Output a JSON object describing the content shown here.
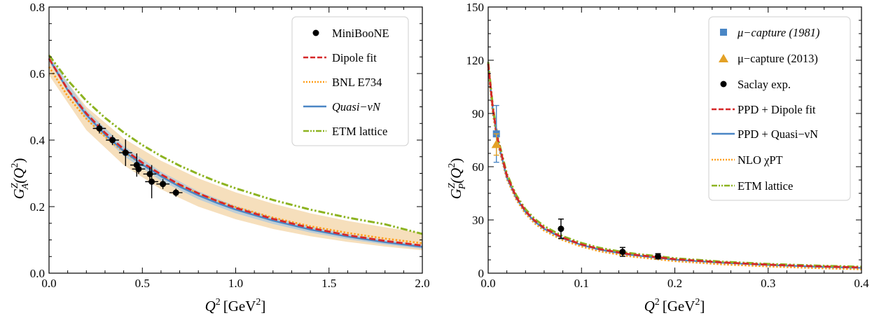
{
  "colors": {
    "minibooNE": "#000000",
    "dipole": "#d62728",
    "bnl": "#ff9f1c",
    "quasi": "#4a86c5",
    "etm": "#8db320",
    "band_orange": "#f5d9b0",
    "band_blue": "#aac8e0",
    "mucap1981": "#4a86c5",
    "mucap2013": "#e3a126",
    "saclay": "#000000"
  },
  "chart_data": [
    {
      "type": "line",
      "xlabel_var": "Q",
      "xlabel_sup": "2",
      "xlabel_unit": "[GeV",
      "xlabel_unit_sup": "2",
      "xlabel_unit_close": "]",
      "ylabel_main": "G",
      "ylabel_sup": "Z",
      "ylabel_sub": "A",
      "ylabel_arg": "(Q",
      "ylabel_arg_sup": "2",
      "ylabel_close": ")",
      "xlim": [
        0.0,
        2.0
      ],
      "ylim": [
        0.0,
        0.8
      ],
      "xticks": [
        "0.0",
        "0.5",
        "1.0",
        "1.5",
        "2.0"
      ],
      "xtick_values": [
        0.0,
        0.5,
        1.0,
        1.5,
        2.0
      ],
      "yticks": [
        "0.0",
        "0.2",
        "0.4",
        "0.6",
        "0.8"
      ],
      "ytick_values": [
        0.0,
        0.2,
        0.4,
        0.6,
        0.8
      ],
      "legend_position": "top-right",
      "legend": [
        "MiniBooNE",
        "Dipole fit",
        "BNL E734",
        "Quasi−νN",
        "ETM lattice"
      ],
      "series": [
        {
          "name": "MiniBooNE",
          "style": "points",
          "x": [
            0.27,
            0.34,
            0.41,
            0.47,
            0.48,
            0.54,
            0.55,
            0.61,
            0.68
          ],
          "y": [
            0.435,
            0.4,
            0.362,
            0.325,
            0.313,
            0.298,
            0.275,
            0.268,
            0.242
          ],
          "xerr": [
            0.035,
            0.035,
            0.035,
            0.035,
            0.035,
            0.035,
            0.035,
            0.035,
            0.035
          ],
          "yerr": [
            0.015,
            0.015,
            0.04,
            0.035,
            0.015,
            0.02,
            0.05,
            0.015,
            0.012
          ]
        },
        {
          "name": "Dipole fit",
          "style": "dashed",
          "x": [
            0.0,
            0.1,
            0.2,
            0.3,
            0.4,
            0.5,
            0.6,
            0.7,
            0.8,
            0.9,
            1.0,
            1.2,
            1.4,
            1.6,
            1.8,
            2.0
          ],
          "y": [
            0.645,
            0.552,
            0.48,
            0.422,
            0.373,
            0.332,
            0.297,
            0.266,
            0.24,
            0.217,
            0.196,
            0.163,
            0.136,
            0.114,
            0.097,
            0.083
          ]
        },
        {
          "name": "BNL E734",
          "style": "dotted",
          "x": [
            0.0,
            0.1,
            0.2,
            0.3,
            0.4,
            0.5,
            0.6,
            0.7,
            0.8,
            0.9,
            1.0,
            1.2,
            1.4,
            1.6,
            1.8,
            2.0
          ],
          "y": [
            0.62,
            0.532,
            0.464,
            0.41,
            0.364,
            0.326,
            0.293,
            0.265,
            0.24,
            0.218,
            0.199,
            0.167,
            0.141,
            0.121,
            0.104,
            0.09
          ]
        },
        {
          "name": "Quasi−νN",
          "style": "solid",
          "x": [
            0.0,
            0.1,
            0.2,
            0.3,
            0.4,
            0.5,
            0.6,
            0.7,
            0.8,
            0.9,
            1.0,
            1.2,
            1.4,
            1.6,
            1.8,
            2.0
          ],
          "y": [
            0.645,
            0.55,
            0.476,
            0.417,
            0.367,
            0.326,
            0.291,
            0.26,
            0.234,
            0.211,
            0.191,
            0.158,
            0.131,
            0.11,
            0.093,
            0.079
          ]
        },
        {
          "name": "ETM lattice",
          "style": "dashdotdot",
          "x": [
            0.0,
            0.1,
            0.2,
            0.3,
            0.4,
            0.5,
            0.6,
            0.7,
            0.8,
            0.9,
            1.0,
            1.2,
            1.4,
            1.6,
            1.8,
            2.0
          ],
          "y": [
            0.655,
            0.58,
            0.518,
            0.467,
            0.423,
            0.385,
            0.352,
            0.323,
            0.298,
            0.275,
            0.255,
            0.22,
            0.191,
            0.167,
            0.147,
            0.118
          ]
        }
      ],
      "bands": [
        {
          "series": "BNL E734",
          "x": [
            0.0,
            0.2,
            0.4,
            0.6,
            0.8,
            1.0,
            1.2,
            1.4,
            1.6,
            1.8,
            2.0
          ],
          "lower": [
            0.595,
            0.43,
            0.325,
            0.252,
            0.2,
            0.162,
            0.133,
            0.111,
            0.094,
            0.08,
            0.069
          ],
          "upper": [
            0.645,
            0.5,
            0.405,
            0.338,
            0.285,
            0.243,
            0.209,
            0.18,
            0.157,
            0.138,
            0.121
          ]
        },
        {
          "series": "Quasi−νN",
          "x": [
            0.0,
            0.2,
            0.4,
            0.6,
            0.8,
            1.0,
            1.2,
            1.4,
            1.6,
            1.8,
            2.0
          ],
          "lower": [
            0.635,
            0.462,
            0.352,
            0.278,
            0.222,
            0.18,
            0.148,
            0.122,
            0.102,
            0.086,
            0.073
          ],
          "upper": [
            0.655,
            0.49,
            0.382,
            0.305,
            0.246,
            0.202,
            0.168,
            0.14,
            0.118,
            0.1,
            0.085
          ]
        }
      ]
    },
    {
      "type": "line",
      "xlabel_var": "Q",
      "xlabel_sup": "2",
      "xlabel_unit": "[GeV",
      "xlabel_unit_sup": "2",
      "xlabel_unit_close": "]",
      "ylabel_main": "G",
      "ylabel_sup": "Z",
      "ylabel_sub": "P",
      "ylabel_arg": "(Q",
      "ylabel_arg_sup": "2",
      "ylabel_close": ")",
      "xlim": [
        0.0,
        0.4
      ],
      "ylim": [
        0,
        150
      ],
      "xticks": [
        "0.0",
        "0.1",
        "0.2",
        "0.3",
        "0.4"
      ],
      "xtick_values": [
        0.0,
        0.1,
        0.2,
        0.3,
        0.4
      ],
      "yticks": [
        "0",
        "30",
        "60",
        "90",
        "120",
        "150"
      ],
      "ytick_values": [
        0,
        30,
        60,
        90,
        120,
        150
      ],
      "legend_position": "top-right",
      "legend": [
        "μ−capture (1981)",
        "μ−capture (2013)",
        "Saclay exp.",
        "PPD + Dipole fit",
        "PPD + Quasi−νN",
        "NLO χPT",
        "ETM lattice"
      ],
      "series": [
        {
          "name": "μ−capture (1981)",
          "style": "square",
          "x": [
            0.0088
          ],
          "y": [
            78.5
          ],
          "yerr": [
            16
          ]
        },
        {
          "name": "μ−capture (2013)",
          "style": "triangle",
          "x": [
            0.0088
          ],
          "y": [
            72.5
          ],
          "yerr": [
            6
          ]
        },
        {
          "name": "Saclay exp.",
          "style": "points",
          "x": [
            0.078,
            0.144,
            0.182
          ],
          "y": [
            25,
            12,
            9.5
          ],
          "yerr": [
            5.5,
            2.5,
            1.5
          ]
        },
        {
          "name": "PPD + Dipole fit",
          "style": "dashed",
          "x": [
            0.0,
            0.005,
            0.01,
            0.02,
            0.03,
            0.04,
            0.05,
            0.06,
            0.08,
            0.1,
            0.12,
            0.15,
            0.2,
            0.25,
            0.3,
            0.35,
            0.4
          ],
          "y": [
            118,
            93,
            76,
            55,
            43,
            35,
            29.5,
            25.5,
            20,
            16.2,
            13.5,
            10.8,
            7.9,
            6.1,
            4.8,
            3.9,
            3.2
          ]
        },
        {
          "name": "PPD + Quasi−νN",
          "style": "solid",
          "x": [
            0.0,
            0.005,
            0.01,
            0.02,
            0.03,
            0.04,
            0.05,
            0.06,
            0.08,
            0.1,
            0.12,
            0.15,
            0.2,
            0.25,
            0.3,
            0.35,
            0.4
          ],
          "y": [
            117,
            92,
            75,
            54,
            42.5,
            34.5,
            29,
            25,
            19.6,
            15.9,
            13.2,
            10.5,
            7.6,
            5.9,
            4.6,
            3.7,
            3.0
          ]
        },
        {
          "name": "NLO χPT",
          "style": "dotted",
          "x": [
            0.0,
            0.005,
            0.01,
            0.02,
            0.03,
            0.04,
            0.05,
            0.06,
            0.08,
            0.1,
            0.12,
            0.15,
            0.2,
            0.25,
            0.3,
            0.35,
            0.4
          ],
          "y": [
            115,
            90,
            73.5,
            53,
            41.5,
            33.5,
            28,
            24,
            18.6,
            15,
            12.3,
            9.6,
            6.8,
            5.0,
            3.8,
            2.9,
            2.2
          ]
        },
        {
          "name": "ETM lattice",
          "style": "dashdotdot",
          "x": [
            0.0,
            0.005,
            0.01,
            0.02,
            0.03,
            0.04,
            0.05,
            0.06,
            0.08,
            0.1,
            0.12,
            0.15,
            0.2,
            0.25,
            0.3,
            0.35,
            0.4
          ],
          "y": [
            119,
            94,
            77,
            56,
            44,
            36,
            30.5,
            26.5,
            20.8,
            17,
            14.2,
            11.4,
            8.4,
            6.5,
            5.2,
            4.3,
            3.6
          ]
        }
      ]
    }
  ]
}
